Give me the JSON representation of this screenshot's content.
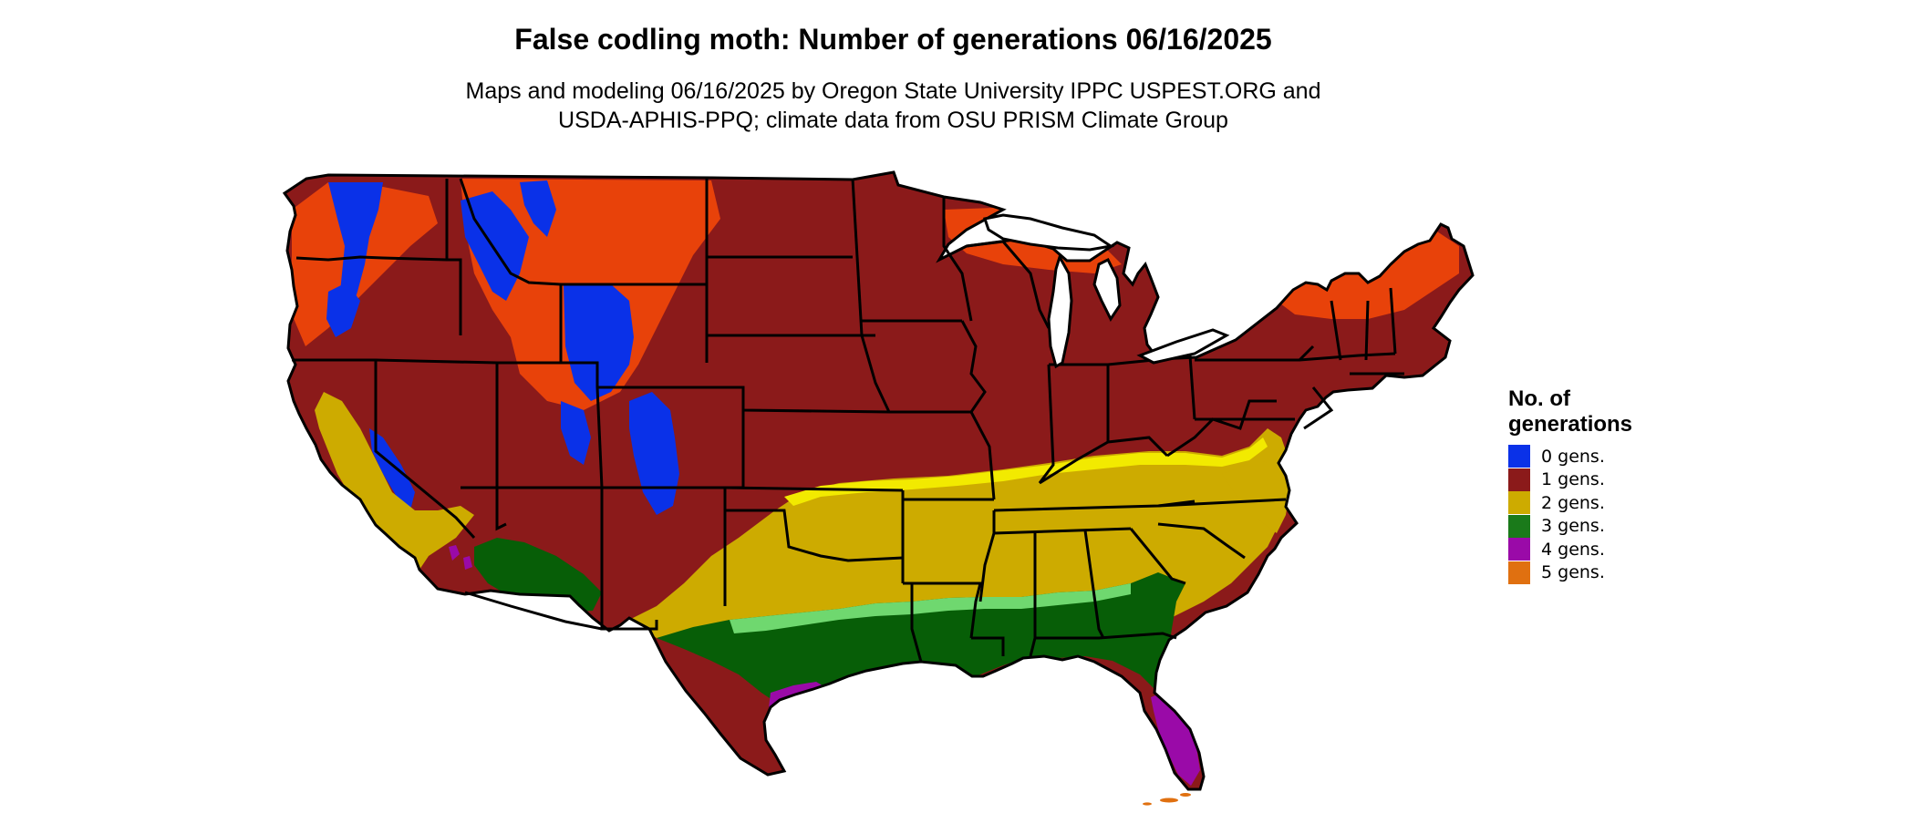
{
  "title": "False codling moth: Number of generations 06/16/2025",
  "subtitle_lines": [
    "Maps and modeling 06/16/2025 by Oregon State University IPPC USPEST.ORG and",
    "USDA-APHIS-PPQ; climate data from OSU PRISM Climate Group"
  ],
  "legend": {
    "title_lines": [
      "No. of",
      "generations"
    ],
    "items": [
      {
        "label": "0 gens.",
        "color": "#0a31e8"
      },
      {
        "label": "1 gens.",
        "color": "#8b1a1a"
      },
      {
        "label": "2 gens.",
        "color": "#cdab00"
      },
      {
        "label": "3 gens.",
        "color": "#1a7a1a"
      },
      {
        "label": "4 gens.",
        "color": "#9a0aa8"
      },
      {
        "label": "5 gens.",
        "color": "#e07010"
      }
    ]
  },
  "map_colors": {
    "gen0": "#0a31e8",
    "gen1": "#8b1a1a",
    "gen1_light": "#e8420a",
    "gen2": "#cdab00",
    "gen2_light": "#f2ea00",
    "gen3": "#075e07",
    "gen3_light": "#6fd86f",
    "gen4": "#9a0aa8",
    "gen5": "#e07010",
    "borders": "#000000"
  }
}
